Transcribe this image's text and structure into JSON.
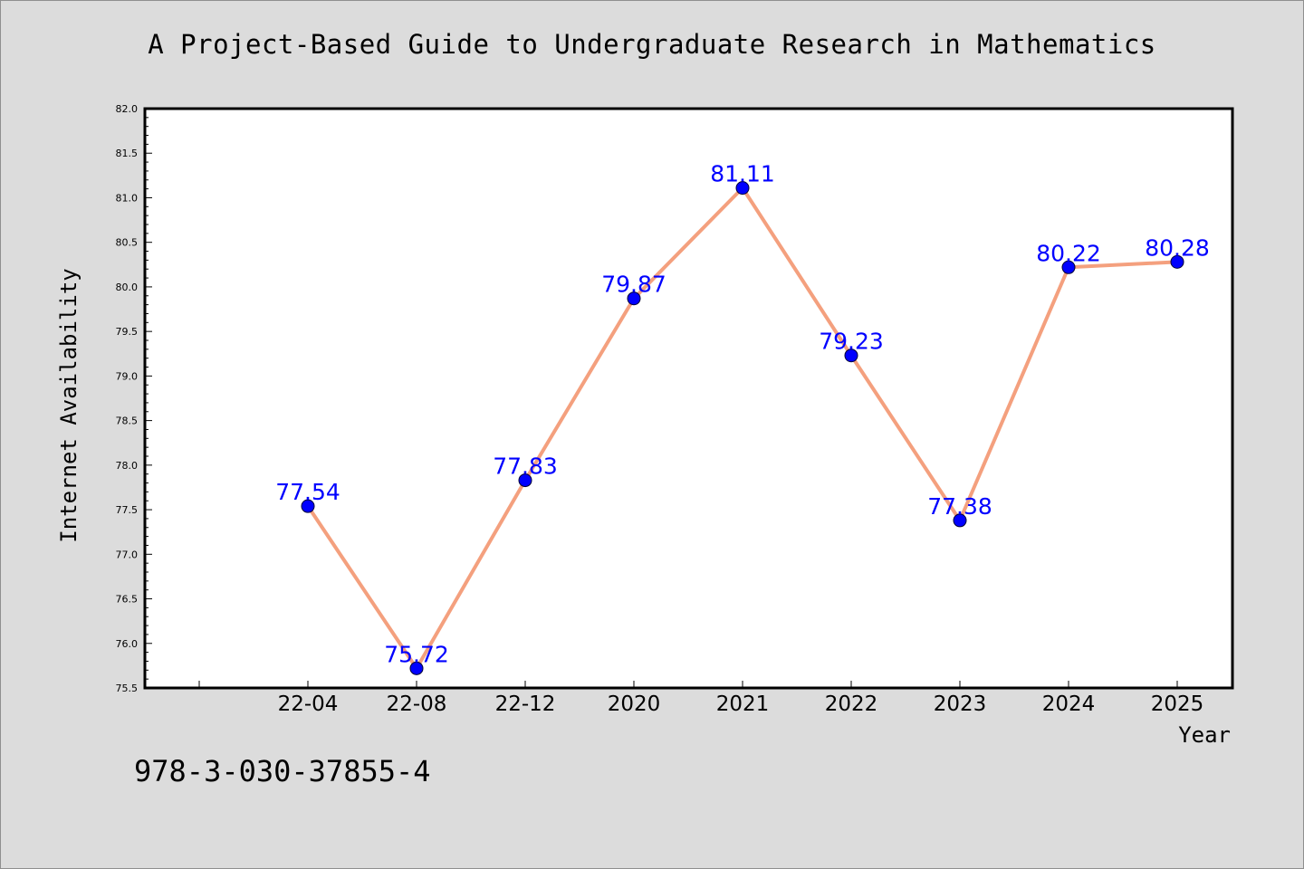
{
  "page": {
    "title": "A Project-Based Guide to Undergraduate Research in Mathematics",
    "footer": "978-3-030-37855-4"
  },
  "chart_data": {
    "type": "line",
    "title": "A Project-Based Guide to Undergraduate Research in Mathematics",
    "xlabel": "Year",
    "ylabel": "Internet Availability",
    "categories": [
      "22-04",
      "22-08",
      "22-12",
      "2020",
      "2021",
      "2022",
      "2023",
      "2024",
      "2025"
    ],
    "series": [
      {
        "values": [
          77.54,
          75.72,
          77.83,
          79.87,
          81.11,
          79.23,
          77.38,
          80.22,
          80.28
        ],
        "labels": [
          "77.54",
          "75.72",
          "77.83",
          "79.87",
          "81.11",
          "79.23",
          "77.38",
          "80.22",
          "80.28"
        ],
        "line_color": "#f4a07e",
        "marker_color": "#0000ff"
      }
    ],
    "ylim": [
      75.5,
      82.0
    ],
    "yticks": [
      "75.5",
      "76.0",
      "76.5",
      "77.0",
      "77.5",
      "78.0",
      "78.5",
      "79.0",
      "79.5",
      "80.0",
      "80.5",
      "81.0",
      "81.5",
      "82.0"
    ],
    "grid": false,
    "legend": "none",
    "colors": {
      "background": "#dcdcdc",
      "plot_background": "#ffffff",
      "axis": "#000000"
    }
  }
}
